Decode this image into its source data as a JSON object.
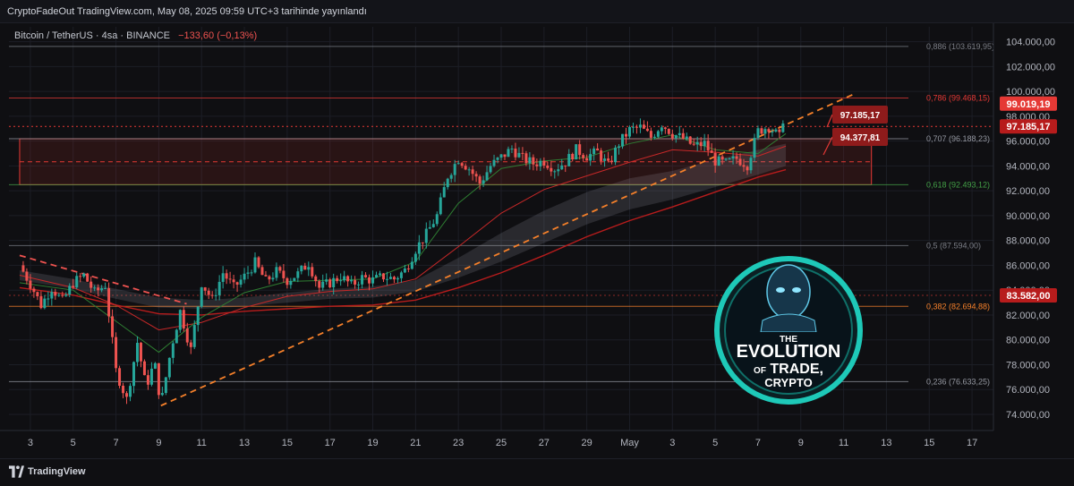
{
  "header": {
    "title": "CryptoFadeOut TradingView.com, May 08, 2025 09:59 UTC+3 tarihinde yayınlandı"
  },
  "footer": {
    "brand": "TradingView"
  },
  "colors": {
    "bg": "#0f0f12",
    "up": "#26a69a",
    "down": "#ef5350",
    "trend": "#f5802a",
    "ma_green": "#2e7d32",
    "ma_red": "#c62828",
    "zone": "#e53935",
    "grid": "#1c1e26"
  },
  "chart_data": {
    "type": "candlestick",
    "symbol_line": {
      "name": "Bitcoin / TetherUS · 4sa · BINANCE",
      "change": "−133,60 (−0,13%)"
    },
    "ylim": [
      72700,
      105200
    ],
    "y_ticks": [
      "104.000,00",
      "102.000,00",
      "100.000,00",
      "98.000,00",
      "96.000,00",
      "94.000,00",
      "92.000,00",
      "90.000,00",
      "88.000,00",
      "86.000,00",
      "84.000,00",
      "82.000,00",
      "80.000,00",
      "78.000,00",
      "76.000,00",
      "74.000,00"
    ],
    "x_ticks": [
      {
        "label": "3",
        "day": 3
      },
      {
        "label": "5",
        "day": 5
      },
      {
        "label": "7",
        "day": 7
      },
      {
        "label": "9",
        "day": 9
      },
      {
        "label": "11",
        "day": 11
      },
      {
        "label": "13",
        "day": 13
      },
      {
        "label": "15",
        "day": 15
      },
      {
        "label": "17",
        "day": 17
      },
      {
        "label": "19",
        "day": 19
      },
      {
        "label": "21",
        "day": 21
      },
      {
        "label": "23",
        "day": 23
      },
      {
        "label": "25",
        "day": 25
      },
      {
        "label": "27",
        "day": 27
      },
      {
        "label": "29",
        "day": 29
      },
      {
        "label": "May",
        "day": 31
      },
      {
        "label": "3",
        "day": 33
      },
      {
        "label": "5",
        "day": 35
      },
      {
        "label": "7",
        "day": 37
      },
      {
        "label": "9",
        "day": 39
      },
      {
        "label": "11",
        "day": 41
      },
      {
        "label": "13",
        "day": 43
      },
      {
        "label": "15",
        "day": 45
      },
      {
        "label": "17",
        "day": 47
      }
    ],
    "fib_levels": [
      {
        "label": "0,886 (103.619,95)",
        "value": 103619.95,
        "color": "#7a7d85"
      },
      {
        "label": "0,786 (99.468,15)",
        "value": 99468.15,
        "color": "#e53935"
      },
      {
        "label": "0,707 (96.188,23)",
        "value": 96188.23,
        "color": "#9598a1"
      },
      {
        "label": "0,618 (92.493,12)",
        "value": 92493.12,
        "color": "#43a047"
      },
      {
        "label": "0,5 (87.594,00)",
        "value": 87594.0,
        "color": "#7a7d85"
      },
      {
        "label": "0,382 (82.694,88)",
        "value": 82694.88,
        "color": "#f5802a"
      },
      {
        "label": "0,236 (76.633,25)",
        "value": 76633.25,
        "color": "#9598a1"
      }
    ],
    "price_badges": [
      {
        "label": "99.019,19",
        "value": 99019.19,
        "color": "#e53935"
      },
      {
        "label": "97.185,17",
        "value": 97185.17,
        "color": "#b71c1c"
      },
      {
        "label": "83.582,00",
        "value": 83582.0,
        "color": "#b71c1c"
      }
    ],
    "callouts": [
      {
        "label": "97.185,17",
        "value": 97185.17
      },
      {
        "label": "94.377,81",
        "value": 94377.81
      }
    ],
    "zone": {
      "top": 96188.23,
      "bottom": 92493.12,
      "mid": 94340,
      "start_day": 2.5,
      "end_day": 42.3
    },
    "trendlines": [
      {
        "from": [
          9.1,
          74700
        ],
        "to": [
          41.5,
          99800
        ],
        "style": "dashed",
        "color": "#f5802a"
      },
      {
        "from": [
          2.5,
          86800
        ],
        "to": [
          10.3,
          82900
        ],
        "style": "dashed",
        "color": "#ef5350"
      }
    ],
    "path": [
      [
        2.5,
        86000
      ],
      [
        3,
        84500
      ],
      [
        3.5,
        82800
      ],
      [
        4,
        84200
      ],
      [
        4.5,
        83100
      ],
      [
        5,
        84600
      ],
      [
        5.5,
        85200
      ],
      [
        6,
        83800
      ],
      [
        6.5,
        84400
      ],
      [
        7,
        77500
      ],
      [
        7.5,
        75200
      ],
      [
        8,
        79800
      ],
      [
        8.4,
        76200
      ],
      [
        8.8,
        78200
      ],
      [
        9.1,
        74800
      ],
      [
        9.6,
        79500
      ],
      [
        10,
        82300
      ],
      [
        10.5,
        79200
      ],
      [
        11,
        84600
      ],
      [
        11.5,
        83200
      ],
      [
        12,
        85400
      ],
      [
        12.5,
        84200
      ],
      [
        13,
        85100
      ],
      [
        13.5,
        86200
      ],
      [
        14,
        84700
      ],
      [
        14.5,
        85500
      ],
      [
        15,
        84800
      ],
      [
        15.5,
        85300
      ],
      [
        16,
        86200
      ],
      [
        16.5,
        84200
      ],
      [
        17,
        84600
      ],
      [
        17.5,
        85100
      ],
      [
        18,
        84400
      ],
      [
        18.5,
        85000
      ],
      [
        19,
        84800
      ],
      [
        19.5,
        85100
      ],
      [
        20,
        84900
      ],
      [
        20.5,
        85600
      ],
      [
        21,
        87300
      ],
      [
        21.5,
        88500
      ],
      [
        22,
        90000
      ],
      [
        22.5,
        93200
      ],
      [
        23,
        94600
      ],
      [
        23.5,
        93800
      ],
      [
        24,
        92600
      ],
      [
        24.5,
        94000
      ],
      [
        25,
        94700
      ],
      [
        25.5,
        95400
      ],
      [
        26,
        94600
      ],
      [
        26.5,
        94200
      ],
      [
        27,
        94400
      ],
      [
        27.5,
        93800
      ],
      [
        28,
        94300
      ],
      [
        28.5,
        95300
      ],
      [
        29,
        94800
      ],
      [
        29.5,
        95100
      ],
      [
        30,
        94000
      ],
      [
        30.5,
        95800
      ],
      [
        31,
        96900
      ],
      [
        31.5,
        97100
      ],
      [
        32,
        96300
      ],
      [
        32.5,
        97400
      ],
      [
        33,
        96600
      ],
      [
        33.5,
        96200
      ],
      [
        34,
        95600
      ],
      [
        34.5,
        95800
      ],
      [
        35,
        94400
      ],
      [
        35.5,
        94200
      ],
      [
        36,
        94600
      ],
      [
        36.5,
        94100
      ],
      [
        37,
        96800
      ],
      [
        37.5,
        97200
      ],
      [
        38,
        96300
      ],
      [
        38.3,
        99019
      ]
    ],
    "ma_green": [
      [
        2.5,
        84600
      ],
      [
        5,
        84000
      ],
      [
        7,
        81500
      ],
      [
        9,
        79000
      ],
      [
        11,
        81800
      ],
      [
        13,
        83800
      ],
      [
        15,
        84700
      ],
      [
        17,
        84800
      ],
      [
        19,
        84900
      ],
      [
        21,
        86300
      ],
      [
        23,
        91000
      ],
      [
        25,
        93800
      ],
      [
        27,
        94400
      ],
      [
        29,
        94700
      ],
      [
        31,
        95800
      ],
      [
        33,
        96500
      ],
      [
        35,
        95300
      ],
      [
        37,
        95000
      ],
      [
        38.3,
        96600
      ]
    ],
    "ma_red": [
      [
        2.5,
        85200
      ],
      [
        5,
        84200
      ],
      [
        7,
        82800
      ],
      [
        9,
        80800
      ],
      [
        11,
        81400
      ],
      [
        13,
        82600
      ],
      [
        15,
        83500
      ],
      [
        17,
        83900
      ],
      [
        19,
        84100
      ],
      [
        21,
        84900
      ],
      [
        23,
        87500
      ],
      [
        25,
        90200
      ],
      [
        27,
        92100
      ],
      [
        29,
        93200
      ],
      [
        31,
        94300
      ],
      [
        33,
        95300
      ],
      [
        35,
        95100
      ],
      [
        37,
        94800
      ],
      [
        38.3,
        95600
      ]
    ],
    "cloud_top": [
      [
        2.5,
        85600
      ],
      [
        5,
        84900
      ],
      [
        7,
        84100
      ],
      [
        9,
        83400
      ],
      [
        11,
        83200
      ],
      [
        13,
        83400
      ],
      [
        15,
        83800
      ],
      [
        17,
        84100
      ],
      [
        19,
        84300
      ],
      [
        21,
        84800
      ],
      [
        23,
        86600
      ],
      [
        25,
        88600
      ],
      [
        27,
        90400
      ],
      [
        29,
        91900
      ],
      [
        31,
        93000
      ],
      [
        33,
        93600
      ],
      [
        35,
        94500
      ],
      [
        37,
        95300
      ],
      [
        38.3,
        95800
      ]
    ],
    "cloud_bottom": [
      [
        2.5,
        84800
      ],
      [
        5,
        84100
      ],
      [
        7,
        83300
      ],
      [
        9,
        82600
      ],
      [
        11,
        82500
      ],
      [
        13,
        82700
      ],
      [
        15,
        83000
      ],
      [
        17,
        83300
      ],
      [
        19,
        83400
      ],
      [
        21,
        83900
      ],
      [
        23,
        85000
      ],
      [
        25,
        86300
      ],
      [
        27,
        87800
      ],
      [
        29,
        89300
      ],
      [
        31,
        90500
      ],
      [
        33,
        91300
      ],
      [
        35,
        92300
      ],
      [
        37,
        93300
      ],
      [
        38.3,
        94000
      ]
    ],
    "lower_red": [
      [
        2.5,
        84200
      ],
      [
        5,
        83600
      ],
      [
        7,
        82800
      ],
      [
        9,
        82100
      ],
      [
        11,
        82000
      ],
      [
        13,
        82300
      ],
      [
        15,
        82500
      ],
      [
        17,
        82700
      ],
      [
        19,
        82800
      ],
      [
        21,
        83200
      ],
      [
        23,
        84200
      ],
      [
        25,
        85400
      ],
      [
        27,
        86800
      ],
      [
        29,
        88300
      ],
      [
        31,
        89600
      ],
      [
        33,
        90700
      ],
      [
        35,
        91900
      ],
      [
        37,
        93100
      ],
      [
        38.3,
        93700
      ]
    ]
  }
}
